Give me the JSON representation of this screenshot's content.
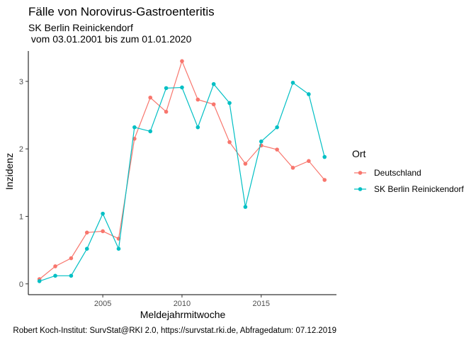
{
  "chart_data": {
    "type": "line",
    "title": "Fälle von Norovirus-Gastroenteritis",
    "subtitle_line1": "SK Berlin Reinickendorf",
    "subtitle_line2": " vom 03.01.2001 bis zum 01.01.2020",
    "xlabel": "Meldejahrmitwoche",
    "ylabel": "Inzidenz",
    "caption": "Robert Koch-Institut: SurvStat@RKI 2.0, https://survstat.rki.de, Abfragedatum: 07.12.2019",
    "xlim": [
      2000.3,
      2019.75
    ],
    "ylim": [
      -0.16,
      3.45
    ],
    "x_ticks": [
      2005,
      2010,
      2015
    ],
    "x_tick_labels": [
      "2005",
      "2010",
      "2015"
    ],
    "y_ticks": [
      0,
      1,
      2,
      3
    ],
    "y_tick_labels": [
      "0",
      "1",
      "2",
      "3"
    ],
    "grid": false,
    "legend": {
      "title": "Ort",
      "position": "right",
      "entries": [
        "Deutschland",
        "SK Berlin Reinickendorf"
      ]
    },
    "x": [
      2001,
      2002,
      2003,
      2004,
      2005,
      2006,
      2007,
      2008,
      2009,
      2010,
      2011,
      2012,
      2013,
      2014,
      2015,
      2016,
      2017,
      2018,
      2019
    ],
    "series": [
      {
        "name": "Deutschland",
        "color": "#F8766D",
        "values": [
          0.07,
          0.26,
          0.38,
          0.76,
          0.78,
          0.67,
          2.15,
          2.76,
          2.55,
          3.3,
          2.73,
          2.66,
          2.1,
          1.78,
          2.05,
          1.99,
          1.72,
          1.82,
          1.54
        ]
      },
      {
        "name": "SK Berlin Reinickendorf",
        "color": "#00BFC4",
        "values": [
          0.04,
          0.12,
          0.12,
          0.52,
          1.04,
          0.52,
          2.32,
          2.26,
          2.9,
          2.91,
          2.32,
          2.96,
          2.68,
          1.14,
          2.11,
          2.32,
          2.98,
          2.81,
          1.88
        ]
      }
    ]
  }
}
